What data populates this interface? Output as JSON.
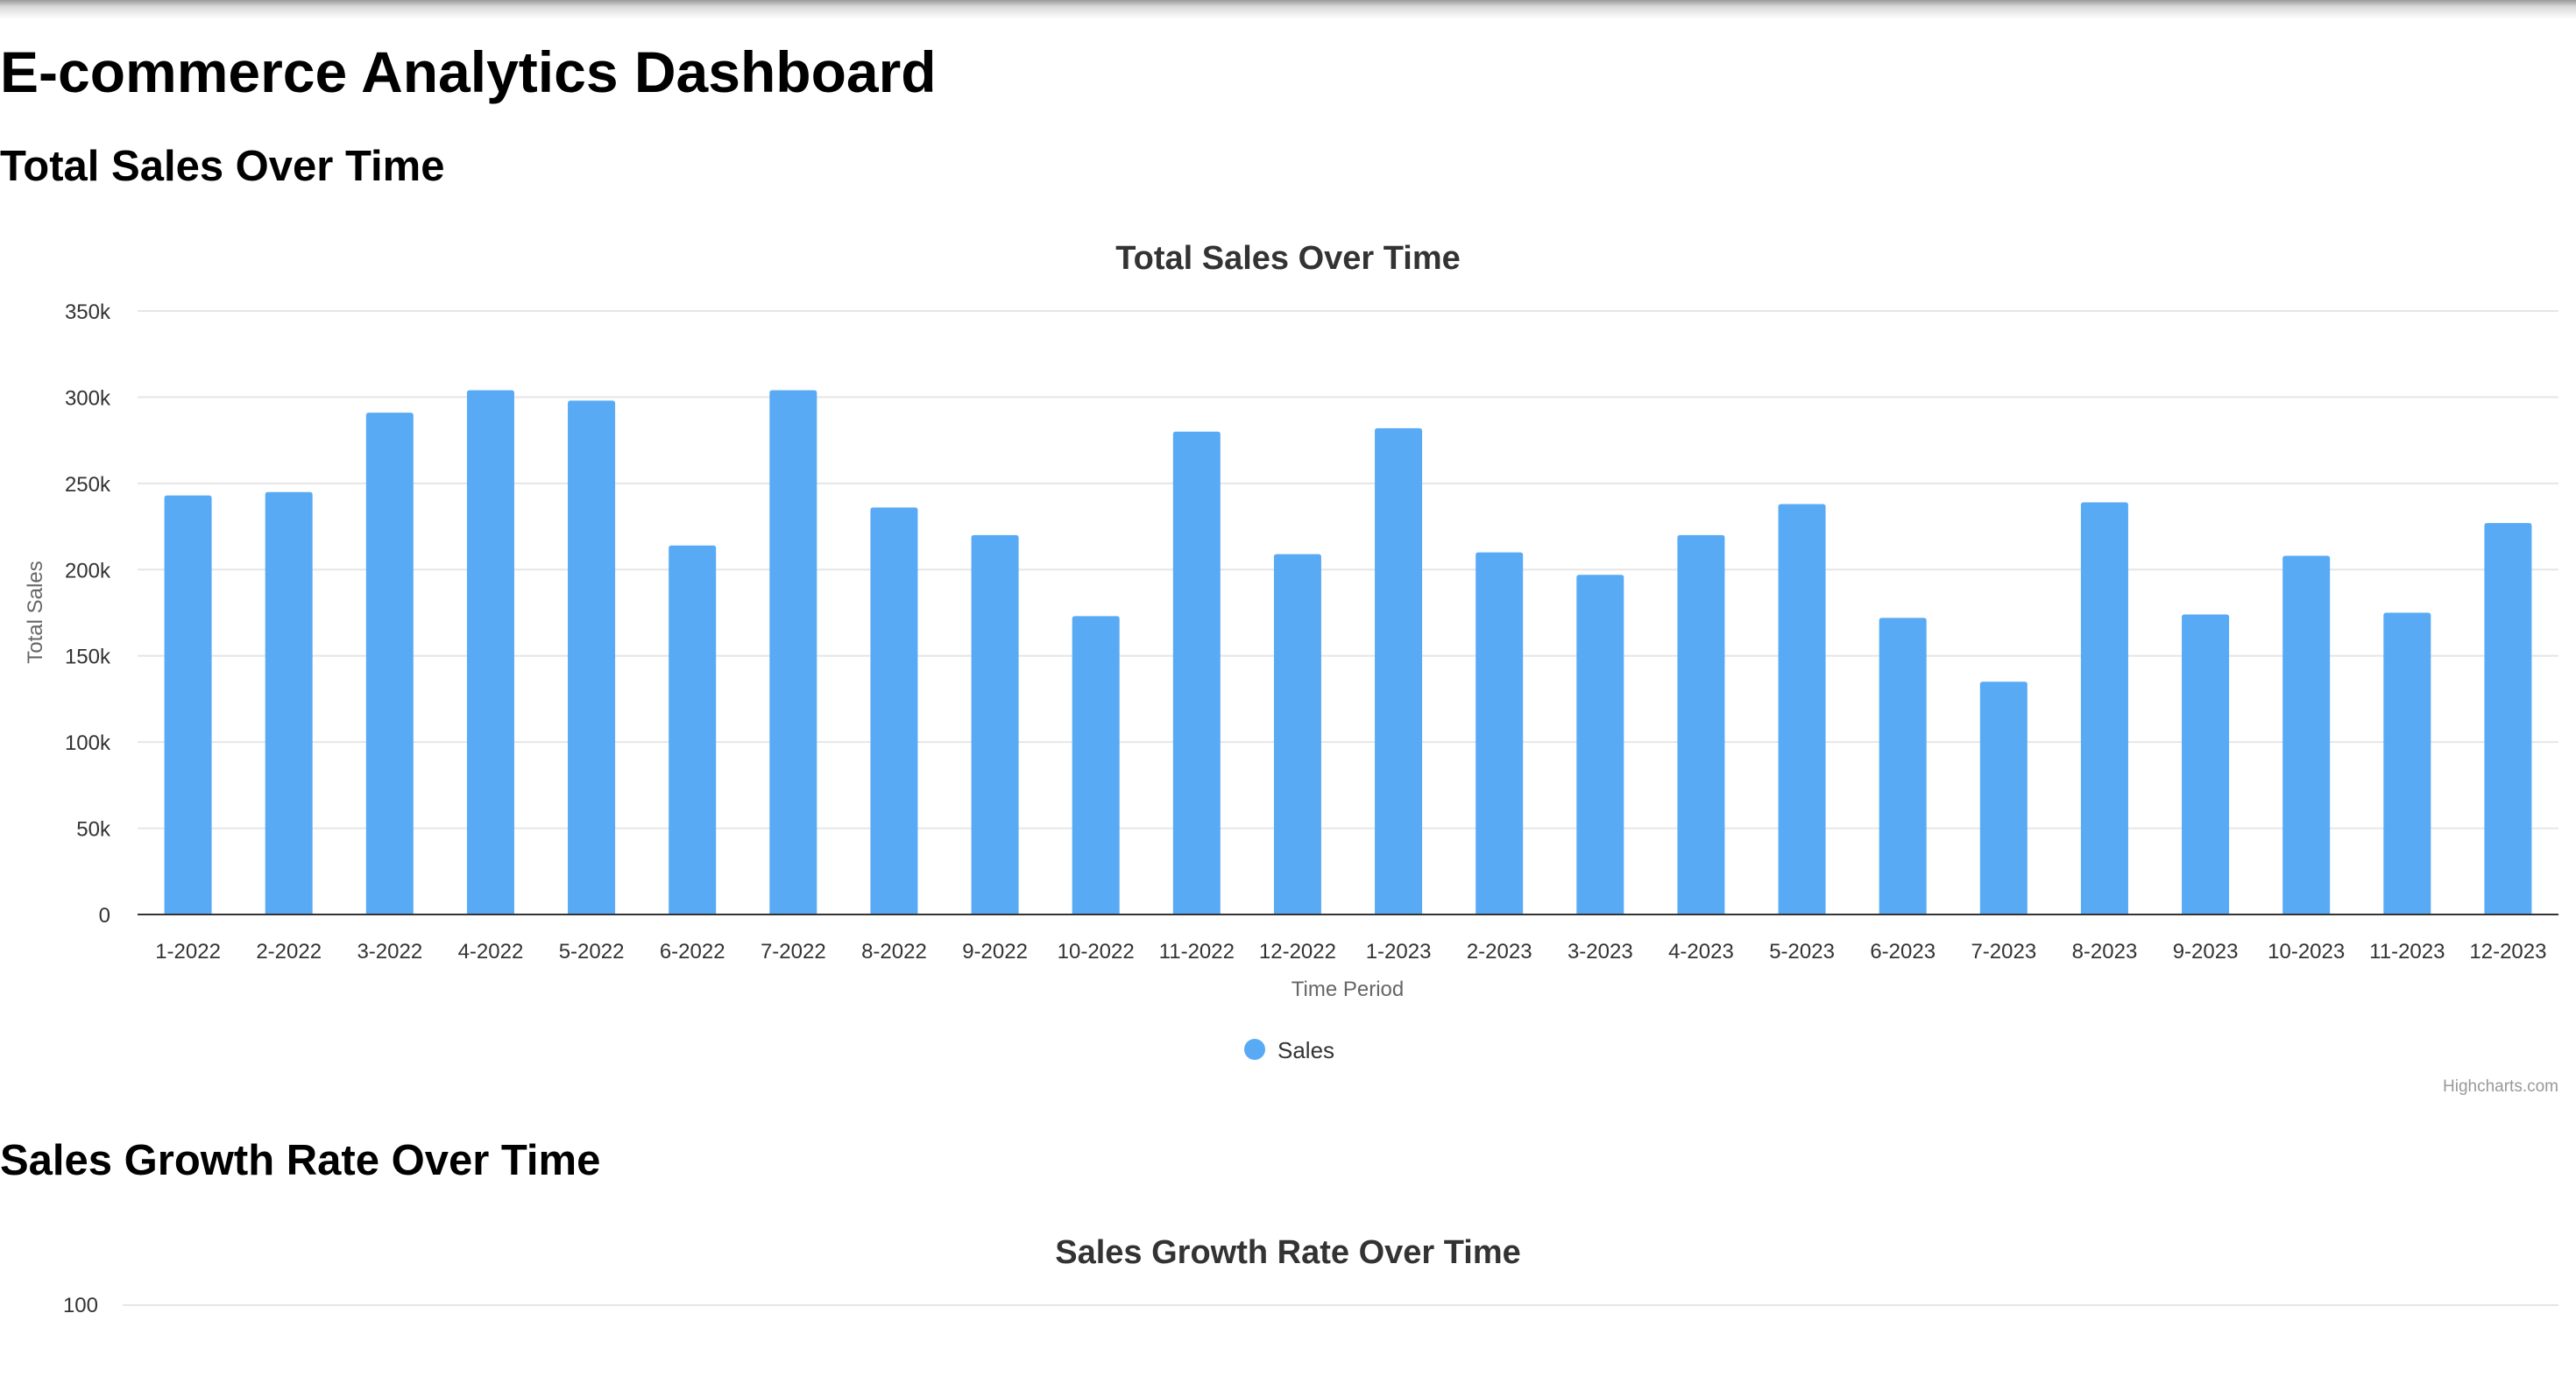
{
  "page": {
    "title": "E-commerce Analytics Dashboard"
  },
  "sections": [
    {
      "heading": "Total Sales Over Time"
    },
    {
      "heading": "Sales Growth Rate Over Time"
    }
  ],
  "colors": {
    "bar": "#58aaf5",
    "axis": "#333333",
    "grid": "#e6e6e6",
    "label": "#333333",
    "credit": "#999999"
  },
  "chart_data": [
    {
      "type": "bar",
      "title": "Total Sales Over Time",
      "xlabel": "Time Period",
      "ylabel": "Total Sales",
      "ylim": [
        0,
        350000
      ],
      "yticks": [
        {
          "value": 0,
          "label": "0"
        },
        {
          "value": 50000,
          "label": "50k"
        },
        {
          "value": 100000,
          "label": "100k"
        },
        {
          "value": 150000,
          "label": "150k"
        },
        {
          "value": 200000,
          "label": "200k"
        },
        {
          "value": 250000,
          "label": "250k"
        },
        {
          "value": 300000,
          "label": "300k"
        },
        {
          "value": 350000,
          "label": "350k"
        }
      ],
      "categories": [
        "1-2022",
        "2-2022",
        "3-2022",
        "4-2022",
        "5-2022",
        "6-2022",
        "7-2022",
        "8-2022",
        "9-2022",
        "10-2022",
        "11-2022",
        "12-2022",
        "1-2023",
        "2-2023",
        "3-2023",
        "4-2023",
        "5-2023",
        "6-2023",
        "7-2023",
        "8-2023",
        "9-2023",
        "10-2023",
        "11-2023",
        "12-2023"
      ],
      "series": [
        {
          "name": "Sales",
          "values": [
            243000,
            245000,
            291000,
            304000,
            298000,
            214000,
            304000,
            236000,
            220000,
            173000,
            280000,
            209000,
            282000,
            210000,
            197000,
            220000,
            238000,
            172000,
            135000,
            239000,
            174000,
            208000,
            175000,
            227000
          ]
        }
      ],
      "legend": "bottom-center",
      "grid": true,
      "credits": "Highcharts.com"
    },
    {
      "type": "line",
      "title": "Sales Growth Rate Over Time",
      "yticks": [
        {
          "value": 100,
          "label": "100"
        }
      ],
      "grid": true
    }
  ]
}
